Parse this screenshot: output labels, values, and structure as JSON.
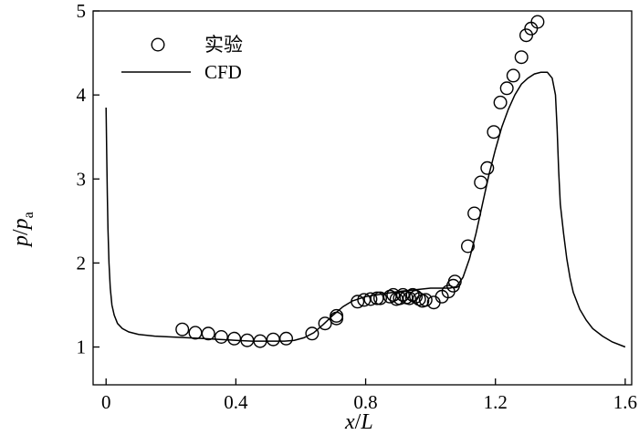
{
  "chart_data": {
    "type": "scatter",
    "xlabel": {
      "main": "x",
      "sep": "/",
      "sub": "L"
    },
    "ylabel": {
      "main": "p",
      "sep": "/",
      "sub": "p",
      "subscript": "a"
    },
    "xlim": [
      -0.04,
      1.62
    ],
    "ylim": [
      0.55,
      5.0
    ],
    "xticks": [
      0,
      0.4,
      0.8,
      1.2,
      1.6
    ],
    "xtick_labels": [
      "0",
      "0.4",
      "0.8",
      "1.2",
      "1.6"
    ],
    "yticks": [
      1,
      2,
      3,
      4,
      5
    ],
    "ytick_labels": [
      "1",
      "2",
      "3",
      "4",
      "5"
    ],
    "legend_placement": "top-left",
    "series": [
      {
        "name": "实验",
        "type": "scatter",
        "marker": "open-circle",
        "points": [
          [
            0.235,
            1.21
          ],
          [
            0.275,
            1.17
          ],
          [
            0.315,
            1.16
          ],
          [
            0.355,
            1.12
          ],
          [
            0.395,
            1.1
          ],
          [
            0.435,
            1.08
          ],
          [
            0.475,
            1.07
          ],
          [
            0.515,
            1.09
          ],
          [
            0.555,
            1.1
          ],
          [
            0.635,
            1.16
          ],
          [
            0.675,
            1.28
          ],
          [
            0.71,
            1.34
          ],
          [
            0.71,
            1.37
          ],
          [
            0.775,
            1.54
          ],
          [
            0.795,
            1.56
          ],
          [
            0.815,
            1.57
          ],
          [
            0.835,
            1.58
          ],
          [
            0.845,
            1.58
          ],
          [
            0.875,
            1.6
          ],
          [
            0.885,
            1.62
          ],
          [
            0.895,
            1.57
          ],
          [
            0.905,
            1.58
          ],
          [
            0.915,
            1.62
          ],
          [
            0.925,
            1.59
          ],
          [
            0.935,
            1.58
          ],
          [
            0.945,
            1.62
          ],
          [
            0.955,
            1.6
          ],
          [
            0.965,
            1.57
          ],
          [
            0.975,
            1.55
          ],
          [
            0.985,
            1.56
          ],
          [
            1.01,
            1.53
          ],
          [
            1.035,
            1.6
          ],
          [
            1.055,
            1.66
          ],
          [
            1.07,
            1.73
          ],
          [
            1.075,
            1.78
          ],
          [
            1.115,
            2.2
          ],
          [
            1.135,
            2.59
          ],
          [
            1.155,
            2.96
          ],
          [
            1.175,
            3.13
          ],
          [
            1.195,
            3.56
          ],
          [
            1.215,
            3.91
          ],
          [
            1.235,
            4.08
          ],
          [
            1.255,
            4.23
          ],
          [
            1.28,
            4.45
          ],
          [
            1.295,
            4.71
          ],
          [
            1.31,
            4.79
          ],
          [
            1.33,
            4.87
          ]
        ]
      },
      {
        "name": "CFD",
        "type": "line",
        "points": [
          [
            0.0,
            3.85
          ],
          [
            0.002,
            3.3
          ],
          [
            0.004,
            2.8
          ],
          [
            0.006,
            2.4
          ],
          [
            0.009,
            2.0
          ],
          [
            0.013,
            1.7
          ],
          [
            0.018,
            1.5
          ],
          [
            0.025,
            1.38
          ],
          [
            0.035,
            1.28
          ],
          [
            0.05,
            1.22
          ],
          [
            0.07,
            1.18
          ],
          [
            0.1,
            1.15
          ],
          [
            0.15,
            1.13
          ],
          [
            0.2,
            1.12
          ],
          [
            0.25,
            1.11
          ],
          [
            0.3,
            1.1
          ],
          [
            0.35,
            1.09
          ],
          [
            0.4,
            1.08
          ],
          [
            0.45,
            1.07
          ],
          [
            0.5,
            1.07
          ],
          [
            0.55,
            1.07
          ],
          [
            0.58,
            1.08
          ],
          [
            0.61,
            1.11
          ],
          [
            0.64,
            1.17
          ],
          [
            0.67,
            1.27
          ],
          [
            0.7,
            1.38
          ],
          [
            0.73,
            1.48
          ],
          [
            0.76,
            1.55
          ],
          [
            0.8,
            1.6
          ],
          [
            0.85,
            1.63
          ],
          [
            0.9,
            1.66
          ],
          [
            0.95,
            1.68
          ],
          [
            1.0,
            1.7
          ],
          [
            1.03,
            1.7
          ],
          [
            1.06,
            1.7
          ],
          [
            1.08,
            1.72
          ],
          [
            1.1,
            1.83
          ],
          [
            1.12,
            2.05
          ],
          [
            1.14,
            2.35
          ],
          [
            1.16,
            2.7
          ],
          [
            1.18,
            3.05
          ],
          [
            1.2,
            3.35
          ],
          [
            1.22,
            3.62
          ],
          [
            1.24,
            3.83
          ],
          [
            1.26,
            4.0
          ],
          [
            1.28,
            4.13
          ],
          [
            1.3,
            4.2
          ],
          [
            1.32,
            4.25
          ],
          [
            1.34,
            4.27
          ],
          [
            1.36,
            4.27
          ],
          [
            1.375,
            4.2
          ],
          [
            1.385,
            4.0
          ],
          [
            1.39,
            3.6
          ],
          [
            1.395,
            3.1
          ],
          [
            1.4,
            2.7
          ],
          [
            1.41,
            2.35
          ],
          [
            1.42,
            2.05
          ],
          [
            1.43,
            1.82
          ],
          [
            1.44,
            1.65
          ],
          [
            1.46,
            1.45
          ],
          [
            1.48,
            1.32
          ],
          [
            1.5,
            1.22
          ],
          [
            1.53,
            1.13
          ],
          [
            1.56,
            1.06
          ],
          [
            1.6,
            1.0
          ]
        ]
      }
    ]
  }
}
